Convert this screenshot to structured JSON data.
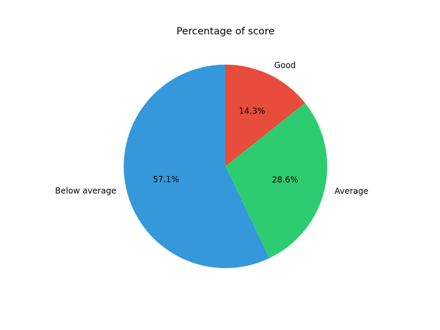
{
  "chart_data": {
    "type": "pie",
    "title": "Percentage of score",
    "slices": [
      {
        "label": "Good",
        "value": 14.3,
        "pct_label": "14.3%",
        "color": "#e74c3c"
      },
      {
        "label": "Average",
        "value": 28.6,
        "pct_label": "28.6%",
        "color": "#2ecc71"
      },
      {
        "label": "Below average",
        "value": 57.1,
        "pct_label": "57.1%",
        "color": "#3498db"
      }
    ],
    "start_angle_deg": 90,
    "direction": "clockwise"
  }
}
